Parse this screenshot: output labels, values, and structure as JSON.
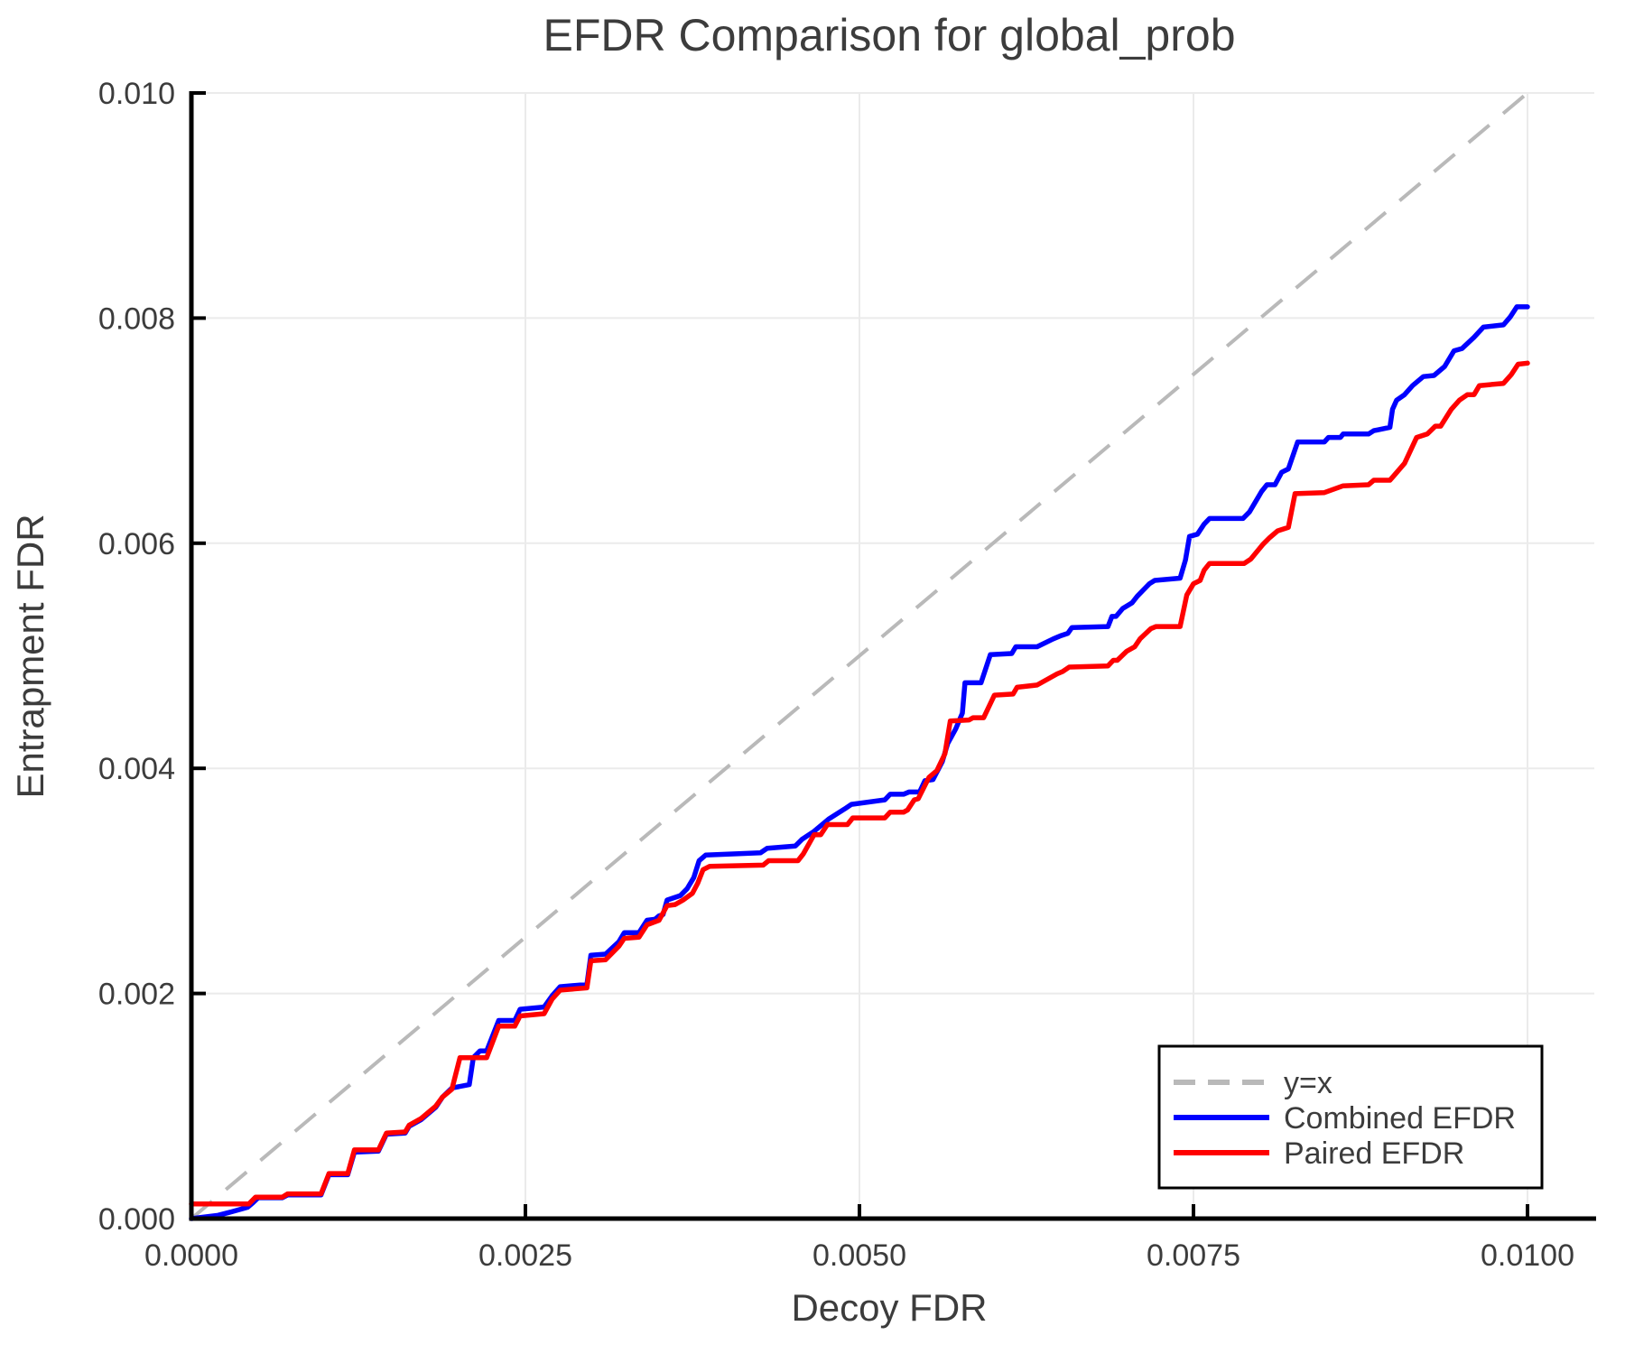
{
  "chart_data": {
    "type": "line",
    "title": "EFDR Comparison for global_prob",
    "xlabel": "Decoy FDR",
    "ylabel": "Entrapment FDR",
    "xlim": [
      0,
      0.0105
    ],
    "ylim": [
      0,
      0.01
    ],
    "grid": true,
    "legend_position": "lower right",
    "x_ticks": [
      0.0,
      0.0025,
      0.005,
      0.0075,
      0.01
    ],
    "x_tick_labels": [
      "0.0000",
      "0.0025",
      "0.0050",
      "0.0075",
      "0.0100"
    ],
    "y_ticks": [
      0.0,
      0.002,
      0.004,
      0.006,
      0.008,
      0.01
    ],
    "y_tick_labels": [
      "0.000",
      "0.002",
      "0.004",
      "0.006",
      "0.008",
      "0.010"
    ],
    "colors": {
      "background": "#ffffff",
      "grid": "#ebebeb",
      "spine": "#000000",
      "text": "#3c3c3c",
      "identity_line": "#b9b9b9",
      "combined": "#0000ff",
      "paired": "#ff0000"
    },
    "reference_line": {
      "label": "y=x",
      "style": "dashed",
      "color": "#b9b9b9",
      "from": [
        0,
        0
      ],
      "to": [
        0.01,
        0.01
      ]
    },
    "series": [
      {
        "name": "Combined EFDR",
        "color": "#0000ff",
        "points": [
          [
            0.0,
            0.0
          ],
          [
            0.0002,
            3e-05
          ],
          [
            0.0003,
            6e-05
          ],
          [
            0.00042,
            0.0001
          ],
          [
            0.00046,
            0.00014
          ],
          [
            0.0005,
            0.000185
          ],
          [
            0.00068,
            0.000185
          ],
          [
            0.00072,
            0.00021
          ],
          [
            0.00097,
            0.00021
          ],
          [
            0.00103,
            0.00039
          ],
          [
            0.00117,
            0.00039
          ],
          [
            0.00122,
            0.00059
          ],
          [
            0.0014,
            0.0006
          ],
          [
            0.00146,
            0.00075
          ],
          [
            0.0016,
            0.00076
          ],
          [
            0.00163,
            0.00082
          ],
          [
            0.00172,
            0.00088
          ],
          [
            0.00183,
            0.00099
          ],
          [
            0.00188,
            0.00108
          ],
          [
            0.00195,
            0.00116
          ],
          [
            0.00208,
            0.00119
          ],
          [
            0.00211,
            0.00143
          ],
          [
            0.00216,
            0.00149
          ],
          [
            0.00221,
            0.00149
          ],
          [
            0.0023,
            0.00176
          ],
          [
            0.00242,
            0.00176
          ],
          [
            0.00246,
            0.00186
          ],
          [
            0.00264,
            0.00188
          ],
          [
            0.0027,
            0.00198
          ],
          [
            0.00276,
            0.00206
          ],
          [
            0.00296,
            0.00208
          ],
          [
            0.00299,
            0.00234
          ],
          [
            0.0031,
            0.00235
          ],
          [
            0.0032,
            0.00246
          ],
          [
            0.00324,
            0.00254
          ],
          [
            0.00335,
            0.00254
          ],
          [
            0.00341,
            0.00265
          ],
          [
            0.00347,
            0.00266
          ],
          [
            0.0035,
            0.00269
          ],
          [
            0.00353,
            0.0027
          ],
          [
            0.00356,
            0.00283
          ],
          [
            0.00366,
            0.00287
          ],
          [
            0.00371,
            0.00293
          ],
          [
            0.00376,
            0.00303
          ],
          [
            0.0038,
            0.00318
          ],
          [
            0.00385,
            0.00323
          ],
          [
            0.00426,
            0.00325
          ],
          [
            0.00431,
            0.00329
          ],
          [
            0.00452,
            0.00331
          ],
          [
            0.00457,
            0.00337
          ],
          [
            0.00466,
            0.00344
          ],
          [
            0.00477,
            0.00355
          ],
          [
            0.00489,
            0.00364
          ],
          [
            0.00494,
            0.00368
          ],
          [
            0.00519,
            0.00372
          ],
          [
            0.00523,
            0.00377
          ],
          [
            0.00533,
            0.00377
          ],
          [
            0.00537,
            0.00379
          ],
          [
            0.00545,
            0.00379
          ],
          [
            0.00549,
            0.00389
          ],
          [
            0.00555,
            0.0039
          ],
          [
            0.00562,
            0.00406
          ],
          [
            0.00566,
            0.00422
          ],
          [
            0.00572,
            0.00435
          ],
          [
            0.00577,
            0.00449
          ],
          [
            0.00579,
            0.00476
          ],
          [
            0.00591,
            0.00476
          ],
          [
            0.00598,
            0.00501
          ],
          [
            0.00614,
            0.00502
          ],
          [
            0.00617,
            0.00508
          ],
          [
            0.00633,
            0.00508
          ],
          [
            0.00645,
            0.00515
          ],
          [
            0.00651,
            0.00518
          ],
          [
            0.00656,
            0.0052
          ],
          [
            0.00659,
            0.00525
          ],
          [
            0.00686,
            0.00526
          ],
          [
            0.00689,
            0.00535
          ],
          [
            0.00692,
            0.00535
          ],
          [
            0.00697,
            0.00542
          ],
          [
            0.00704,
            0.00547
          ],
          [
            0.00708,
            0.00553
          ],
          [
            0.00717,
            0.00564
          ],
          [
            0.00721,
            0.00567
          ],
          [
            0.0074,
            0.00569
          ],
          [
            0.00744,
            0.00585
          ],
          [
            0.00747,
            0.00606
          ],
          [
            0.00753,
            0.00608
          ],
          [
            0.00758,
            0.00617
          ],
          [
            0.00762,
            0.00622
          ],
          [
            0.00787,
            0.00622
          ],
          [
            0.00792,
            0.00628
          ],
          [
            0.00801,
            0.00646
          ],
          [
            0.00805,
            0.00652
          ],
          [
            0.00811,
            0.00652
          ],
          [
            0.00816,
            0.00663
          ],
          [
            0.00821,
            0.00666
          ],
          [
            0.00828,
            0.0069
          ],
          [
            0.00848,
            0.0069
          ],
          [
            0.00851,
            0.00694
          ],
          [
            0.0086,
            0.00694
          ],
          [
            0.00862,
            0.00697
          ],
          [
            0.00881,
            0.00697
          ],
          [
            0.00885,
            0.007
          ],
          [
            0.00897,
            0.00703
          ],
          [
            0.00899,
            0.00719
          ],
          [
            0.00902,
            0.00727
          ],
          [
            0.00908,
            0.00732
          ],
          [
            0.00914,
            0.0074
          ],
          [
            0.00922,
            0.00748
          ],
          [
            0.0093,
            0.00749
          ],
          [
            0.00938,
            0.00757
          ],
          [
            0.00945,
            0.00771
          ],
          [
            0.00951,
            0.00773
          ],
          [
            0.0096,
            0.00783
          ],
          [
            0.00967,
            0.00792
          ],
          [
            0.00982,
            0.00794
          ],
          [
            0.00987,
            0.00801
          ],
          [
            0.00992,
            0.0081
          ],
          [
            0.01,
            0.0081
          ]
        ]
      },
      {
        "name": "Paired EFDR",
        "color": "#ff0000",
        "points": [
          [
            0.0,
            0.00013
          ],
          [
            0.00043,
            0.00013
          ],
          [
            0.00048,
            0.00019
          ],
          [
            0.00068,
            0.00019
          ],
          [
            0.00072,
            0.00022
          ],
          [
            0.00097,
            0.00022
          ],
          [
            0.00103,
            0.0004
          ],
          [
            0.00117,
            0.0004
          ],
          [
            0.00122,
            0.00061
          ],
          [
            0.0014,
            0.00061
          ],
          [
            0.00146,
            0.00076
          ],
          [
            0.0016,
            0.00077
          ],
          [
            0.00163,
            0.00083
          ],
          [
            0.00172,
            0.00089
          ],
          [
            0.00183,
            0.001
          ],
          [
            0.00188,
            0.00108
          ],
          [
            0.00195,
            0.00115
          ],
          [
            0.00201,
            0.00143
          ],
          [
            0.00221,
            0.00143
          ],
          [
            0.0023,
            0.00171
          ],
          [
            0.00242,
            0.00171
          ],
          [
            0.00246,
            0.0018
          ],
          [
            0.00264,
            0.00182
          ],
          [
            0.0027,
            0.00195
          ],
          [
            0.00276,
            0.00203
          ],
          [
            0.00296,
            0.00205
          ],
          [
            0.00299,
            0.00229
          ],
          [
            0.0031,
            0.0023
          ],
          [
            0.0032,
            0.00242
          ],
          [
            0.00324,
            0.00249
          ],
          [
            0.00335,
            0.0025
          ],
          [
            0.00341,
            0.00261
          ],
          [
            0.0035,
            0.00265
          ],
          [
            0.00356,
            0.00278
          ],
          [
            0.00362,
            0.00279
          ],
          [
            0.00368,
            0.00283
          ],
          [
            0.00375,
            0.00289
          ],
          [
            0.00379,
            0.00298
          ],
          [
            0.00383,
            0.0031
          ],
          [
            0.00388,
            0.00313
          ],
          [
            0.00428,
            0.00314
          ],
          [
            0.00432,
            0.00318
          ],
          [
            0.00454,
            0.00318
          ],
          [
            0.00458,
            0.00324
          ],
          [
            0.00466,
            0.00341
          ],
          [
            0.00471,
            0.00341
          ],
          [
            0.00476,
            0.0035
          ],
          [
            0.00491,
            0.0035
          ],
          [
            0.00495,
            0.00356
          ],
          [
            0.00519,
            0.00356
          ],
          [
            0.00523,
            0.00361
          ],
          [
            0.00533,
            0.00361
          ],
          [
            0.00536,
            0.00363
          ],
          [
            0.00541,
            0.00372
          ],
          [
            0.00544,
            0.00373
          ],
          [
            0.00552,
            0.00392
          ],
          [
            0.00558,
            0.00398
          ],
          [
            0.00564,
            0.00413
          ],
          [
            0.00568,
            0.00442
          ],
          [
            0.00582,
            0.00443
          ],
          [
            0.00585,
            0.00445
          ],
          [
            0.00593,
            0.00445
          ],
          [
            0.00601,
            0.00465
          ],
          [
            0.00615,
            0.00466
          ],
          [
            0.00618,
            0.00472
          ],
          [
            0.00633,
            0.00474
          ],
          [
            0.00648,
            0.00484
          ],
          [
            0.00652,
            0.00486
          ],
          [
            0.00657,
            0.0049
          ],
          [
            0.00686,
            0.00491
          ],
          [
            0.0069,
            0.00496
          ],
          [
            0.00693,
            0.00496
          ],
          [
            0.007,
            0.00504
          ],
          [
            0.00706,
            0.00508
          ],
          [
            0.0071,
            0.00515
          ],
          [
            0.00718,
            0.00524
          ],
          [
            0.00722,
            0.00526
          ],
          [
            0.0074,
            0.00526
          ],
          [
            0.00745,
            0.00554
          ],
          [
            0.0075,
            0.00564
          ],
          [
            0.00755,
            0.00567
          ],
          [
            0.00758,
            0.00576
          ],
          [
            0.00762,
            0.00582
          ],
          [
            0.00788,
            0.00582
          ],
          [
            0.00793,
            0.00586
          ],
          [
            0.00802,
            0.00599
          ],
          [
            0.00807,
            0.00605
          ],
          [
            0.00813,
            0.00611
          ],
          [
            0.00821,
            0.00614
          ],
          [
            0.00826,
            0.00644
          ],
          [
            0.00848,
            0.00645
          ],
          [
            0.00862,
            0.00651
          ],
          [
            0.00881,
            0.00652
          ],
          [
            0.00885,
            0.00656
          ],
          [
            0.00897,
            0.00656
          ],
          [
            0.009,
            0.0066
          ],
          [
            0.00908,
            0.00671
          ],
          [
            0.00917,
            0.00694
          ],
          [
            0.00925,
            0.00697
          ],
          [
            0.00931,
            0.00704
          ],
          [
            0.00935,
            0.00704
          ],
          [
            0.00943,
            0.00719
          ],
          [
            0.00949,
            0.00727
          ],
          [
            0.00955,
            0.00732
          ],
          [
            0.0096,
            0.00732
          ],
          [
            0.00964,
            0.0074
          ],
          [
            0.00982,
            0.00742
          ],
          [
            0.00988,
            0.0075
          ],
          [
            0.00993,
            0.00759
          ],
          [
            0.01,
            0.0076
          ]
        ]
      }
    ]
  }
}
